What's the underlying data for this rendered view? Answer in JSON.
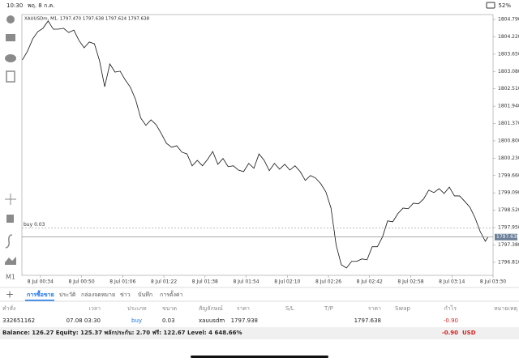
{
  "status_bar": {
    "time": "10:30",
    "date": "พฤ. 8 ก.ค.",
    "battery": "52%"
  },
  "toolbar": {
    "timeframe": "M1"
  },
  "chart_data": {
    "type": "line",
    "title": "XAUUSDm, M1, 1797.470 1797.638 1797.624 1797.638",
    "color": "#111111",
    "x": [
      -7,
      -5,
      -3,
      -1,
      1,
      3,
      5,
      7,
      9,
      11,
      13,
      15,
      17,
      19,
      21,
      23,
      25,
      27,
      29,
      31,
      33,
      35,
      37,
      39,
      41,
      43,
      45,
      47,
      49,
      51,
      53,
      55,
      57,
      59,
      61,
      63,
      65,
      67,
      69,
      71,
      73,
      75,
      77,
      79,
      81,
      83,
      85,
      87,
      89,
      91,
      93,
      95,
      97,
      99,
      101,
      103,
      105,
      107,
      109,
      111,
      113,
      115,
      117,
      119,
      121,
      123,
      125,
      127,
      129,
      131,
      133,
      135,
      137,
      139,
      141,
      143,
      145,
      147,
      149,
      151,
      153,
      155,
      157,
      159,
      161,
      163,
      165,
      167,
      169,
      171,
      173,
      174
    ],
    "values": [
      1803.46,
      1803.75,
      1804.15,
      1804.39,
      1804.5,
      1804.74,
      1804.47,
      1804.47,
      1804.5,
      1804.36,
      1804.44,
      1804.1,
      1803.86,
      1804.05,
      1803.99,
      1803.43,
      1802.58,
      1803.33,
      1803.06,
      1803.09,
      1802.8,
      1802.56,
      1802.16,
      1801.55,
      1801.31,
      1801.49,
      1801.33,
      1801.04,
      1800.72,
      1800.59,
      1800.64,
      1800.43,
      1800.37,
      1799.98,
      1800.16,
      1799.98,
      1800.19,
      1800.45,
      1800.03,
      1800.22,
      1799.95,
      1799.98,
      1799.84,
      1799.79,
      1800.06,
      1799.9,
      1800.37,
      1800.16,
      1799.82,
      1800.06,
      1799.87,
      1800.03,
      1799.84,
      1799.98,
      1799.79,
      1799.5,
      1799.66,
      1799.58,
      1799.39,
      1799.12,
      1798.59,
      1797.37,
      1796.73,
      1796.62,
      1796.84,
      1796.84,
      1796.92,
      1796.89,
      1797.32,
      1797.32,
      1797.64,
      1798.17,
      1798.14,
      1798.41,
      1798.59,
      1798.57,
      1798.75,
      1798.73,
      1798.89,
      1799.18,
      1799.1,
      1799.23,
      1799.07,
      1799.28,
      1798.99,
      1798.99,
      1798.81,
      1798.62,
      1798.27,
      1797.82,
      1797.5,
      1797.638
    ],
    "xlim": [
      -7.2,
      176
    ],
    "ylim": [
      1796.38,
      1804.95
    ],
    "xticks": [
      {
        "value": 0,
        "label": "8 Jul 00:34"
      },
      {
        "value": 16,
        "label": "8 Jul 00:50"
      },
      {
        "value": 32,
        "label": "8 Jul 01:06"
      },
      {
        "value": 48,
        "label": "8 Jul 01:22"
      },
      {
        "value": 64,
        "label": "8 Jul 01:38"
      },
      {
        "value": 80,
        "label": "8 Jul 01:54"
      },
      {
        "value": 96,
        "label": "8 Jul 02:10"
      },
      {
        "value": 112,
        "label": "8 Jul 02:26"
      },
      {
        "value": 128,
        "label": "8 Jul 02:42"
      },
      {
        "value": 144,
        "label": "8 Jul 02:58"
      },
      {
        "value": 160,
        "label": "8 Jul 03:14"
      },
      {
        "value": 176,
        "label": "8 Jul 03:30"
      }
    ],
    "yticks": [
      {
        "value": 1804.79,
        "label": "1804.790"
      },
      {
        "value": 1804.22,
        "label": "1804.220"
      },
      {
        "value": 1803.65,
        "label": "1803.650"
      },
      {
        "value": 1803.08,
        "label": "1803.080"
      },
      {
        "value": 1802.51,
        "label": "1802.510"
      },
      {
        "value": 1801.94,
        "label": "1801.940"
      },
      {
        "value": 1801.37,
        "label": "1801.370"
      },
      {
        "value": 1800.8,
        "label": "1800.800"
      },
      {
        "value": 1800.23,
        "label": "1800.230"
      },
      {
        "value": 1799.66,
        "label": "1799.660"
      },
      {
        "value": 1799.09,
        "label": "1799.090"
      },
      {
        "value": 1798.52,
        "label": "1798.520"
      },
      {
        "value": 1797.95,
        "label": "1797.950"
      },
      {
        "value": 1797.38,
        "label": "1797.380"
      },
      {
        "value": 1796.81,
        "label": "1796.810"
      }
    ],
    "last_price": 1797.638,
    "order_line": {
      "label": "buy 0.03",
      "price": 1797.938
    }
  },
  "tabs": [
    "การซื้อขาย",
    "ประวัติ",
    "กล่องจดหมาย",
    "ข่าว",
    "บันทึก",
    "การตั้งค่า"
  ],
  "table": {
    "columns": [
      "คำสั่ง",
      "เวลา",
      "ประเภท",
      "ขนาด",
      "สัญลักษณ์",
      "ราคา",
      "S/L",
      "T/P",
      "ราคา",
      "Swap",
      "กำไร",
      "หมายเหตุ"
    ],
    "row": {
      "order": "332651162",
      "time": "07.08 03:30",
      "type": "buy",
      "volume": "0.03",
      "symbol": "xauusdm",
      "open_price": "1797.938",
      "current_price": "1797.638",
      "profit": "-0.90"
    }
  },
  "footer": {
    "summary": "Balance: 126.27 Equity: 125.37 พลักประกัน: 2.70 ฟรี: 122.67 Level: 4 648.66%",
    "profit": "-0.90",
    "currency": "USD"
  }
}
